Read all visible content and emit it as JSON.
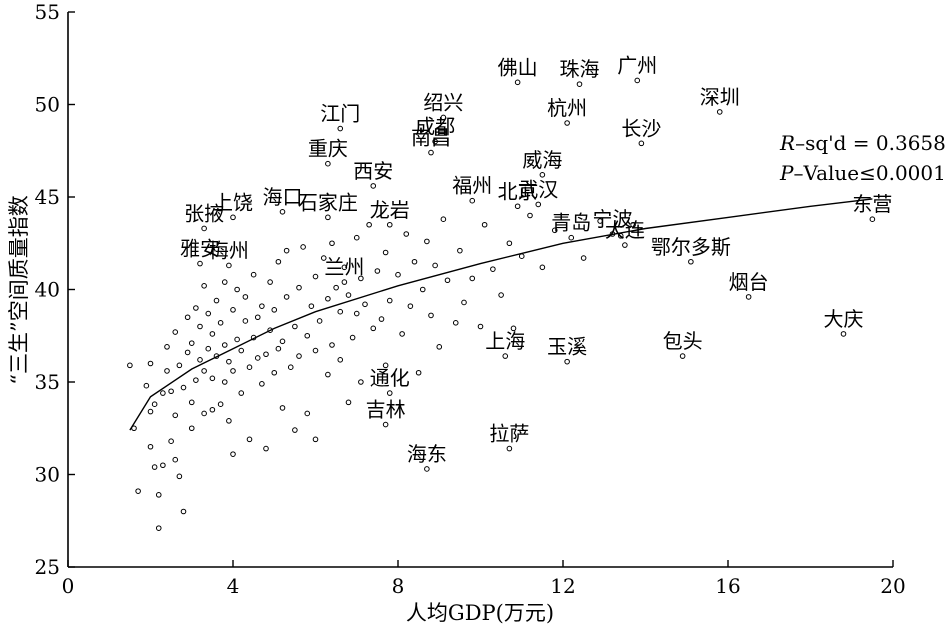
{
  "chart_data": {
    "type": "scatter",
    "title": "",
    "xlabel": "人均GDP(万元)",
    "ylabel": "“三生”空间质量指数",
    "xlim": [
      0,
      20
    ],
    "ylim": [
      25,
      55
    ],
    "xticks": [
      0,
      4,
      8,
      12,
      16,
      20
    ],
    "yticks": [
      25,
      30,
      35,
      40,
      45,
      50,
      55
    ],
    "grid": false,
    "legend": "none",
    "marker": "open-circle",
    "colors": {
      "axis": "#000000",
      "points": "#000000",
      "fit_line": "#000000"
    },
    "annotation": {
      "r_label_italic": "R",
      "r_label_rest": "–sq'd = 0.3658",
      "p_label_italic": "P",
      "p_label_rest": "–Value≤0.0001"
    },
    "fit_curve": {
      "type": "logarithmic",
      "x": [
        1.5,
        2,
        3,
        4,
        5,
        6,
        8,
        10,
        12,
        14,
        16,
        18,
        19.5
      ],
      "y": [
        32.4,
        34.2,
        35.7,
        36.8,
        37.9,
        38.8,
        40.2,
        41.4,
        42.5,
        43.3,
        43.9,
        44.5,
        44.9
      ]
    },
    "labeled_points": [
      {
        "name": "佛山",
        "x": 10.9,
        "y": 51.2
      },
      {
        "name": "珠海",
        "x": 12.4,
        "y": 51.1
      },
      {
        "name": "广州",
        "x": 13.8,
        "y": 51.3
      },
      {
        "name": "深圳",
        "x": 15.8,
        "y": 49.6
      },
      {
        "name": "绍兴",
        "x": 9.1,
        "y": 49.3
      },
      {
        "name": "杭州",
        "x": 12.1,
        "y": 49.0
      },
      {
        "name": "江门",
        "x": 6.6,
        "y": 48.7
      },
      {
        "name": "成都",
        "x": 8.9,
        "y": 48.0
      },
      {
        "name": "长沙",
        "x": 13.9,
        "y": 47.9
      },
      {
        "name": "南昌",
        "x": 8.8,
        "y": 47.4
      },
      {
        "name": "重庆",
        "x": 6.3,
        "y": 46.8
      },
      {
        "name": "威海",
        "x": 11.5,
        "y": 46.2
      },
      {
        "name": "西安",
        "x": 7.4,
        "y": 45.6
      },
      {
        "name": "福州",
        "x": 9.8,
        "y": 44.8
      },
      {
        "name": "北京",
        "x": 10.9,
        "y": 44.5
      },
      {
        "name": "武汉",
        "x": 11.4,
        "y": 44.6
      },
      {
        "name": "张掖",
        "x": 3.3,
        "y": 43.3
      },
      {
        "name": "上饶",
        "x": 4.0,
        "y": 43.9
      },
      {
        "name": "海口",
        "x": 5.2,
        "y": 44.2
      },
      {
        "name": "石家庄",
        "x": 6.3,
        "y": 43.9
      },
      {
        "name": "龙岩",
        "x": 7.8,
        "y": 43.5
      },
      {
        "name": "青岛",
        "x": 12.2,
        "y": 42.8
      },
      {
        "name": "宁波",
        "x": 13.2,
        "y": 43.0
      },
      {
        "name": "大连",
        "x": 13.5,
        "y": 42.4
      },
      {
        "name": "鄂尔多斯",
        "x": 15.1,
        "y": 41.5
      },
      {
        "name": "东营",
        "x": 19.5,
        "y": 43.8
      },
      {
        "name": "雅安",
        "x": 3.2,
        "y": 41.4
      },
      {
        "name": "梅州",
        "x": 3.9,
        "y": 41.3
      },
      {
        "name": "兰州",
        "x": 6.7,
        "y": 40.4
      },
      {
        "name": "烟台",
        "x": 16.5,
        "y": 39.6
      },
      {
        "name": "上海",
        "x": 10.6,
        "y": 36.4
      },
      {
        "name": "玉溪",
        "x": 12.1,
        "y": 36.1
      },
      {
        "name": "包头",
        "x": 14.9,
        "y": 36.4
      },
      {
        "name": "大庆",
        "x": 18.8,
        "y": 37.6
      },
      {
        "name": "通化",
        "x": 7.8,
        "y": 34.4
      },
      {
        "name": "吉林",
        "x": 7.7,
        "y": 32.7
      },
      {
        "name": "拉萨",
        "x": 10.7,
        "y": 31.4
      },
      {
        "name": "海东",
        "x": 8.7,
        "y": 30.3
      }
    ],
    "other_points": [
      [
        1.5,
        35.9
      ],
      [
        1.6,
        32.5
      ],
      [
        1.7,
        29.1
      ],
      [
        1.9,
        34.8
      ],
      [
        2.0,
        31.5
      ],
      [
        2.0,
        33.4
      ],
      [
        2.0,
        36.0
      ],
      [
        2.1,
        30.4
      ],
      [
        2.1,
        33.8
      ],
      [
        2.2,
        27.1
      ],
      [
        2.2,
        28.9
      ],
      [
        2.3,
        30.5
      ],
      [
        2.3,
        34.4
      ],
      [
        2.4,
        35.6
      ],
      [
        2.4,
        36.9
      ],
      [
        2.5,
        31.8
      ],
      [
        2.5,
        34.5
      ],
      [
        2.6,
        30.8
      ],
      [
        2.6,
        33.2
      ],
      [
        2.6,
        37.7
      ],
      [
        2.7,
        29.9
      ],
      [
        2.7,
        35.9
      ],
      [
        2.8,
        28.0
      ],
      [
        2.8,
        34.7
      ],
      [
        2.9,
        36.6
      ],
      [
        2.9,
        38.5
      ],
      [
        3.0,
        32.5
      ],
      [
        3.0,
        33.9
      ],
      [
        3.0,
        37.1
      ],
      [
        3.1,
        35.1
      ],
      [
        3.1,
        39.0
      ],
      [
        3.2,
        36.2
      ],
      [
        3.2,
        38.0
      ],
      [
        3.3,
        33.3
      ],
      [
        3.3,
        35.6
      ],
      [
        3.3,
        40.2
      ],
      [
        3.4,
        36.8
      ],
      [
        3.4,
        38.7
      ],
      [
        3.5,
        33.5
      ],
      [
        3.5,
        35.2
      ],
      [
        3.5,
        37.6
      ],
      [
        3.6,
        36.4
      ],
      [
        3.6,
        39.4
      ],
      [
        3.7,
        33.8
      ],
      [
        3.7,
        38.2
      ],
      [
        3.8,
        35.0
      ],
      [
        3.8,
        37.0
      ],
      [
        3.8,
        40.4
      ],
      [
        3.9,
        32.9
      ],
      [
        3.9,
        36.1
      ],
      [
        4.0,
        31.1
      ],
      [
        4.0,
        35.6
      ],
      [
        4.0,
        38.9
      ],
      [
        4.1,
        37.3
      ],
      [
        4.1,
        40.0
      ],
      [
        4.2,
        34.4
      ],
      [
        4.2,
        36.7
      ],
      [
        4.3,
        38.3
      ],
      [
        4.3,
        39.6
      ],
      [
        4.4,
        31.9
      ],
      [
        4.4,
        35.8
      ],
      [
        4.5,
        37.4
      ],
      [
        4.5,
        40.8
      ],
      [
        4.6,
        36.3
      ],
      [
        4.6,
        38.5
      ],
      [
        4.7,
        34.9
      ],
      [
        4.7,
        39.1
      ],
      [
        4.8,
        31.4
      ],
      [
        4.8,
        36.5
      ],
      [
        4.9,
        37.8
      ],
      [
        4.9,
        40.4
      ],
      [
        5.0,
        35.5
      ],
      [
        5.0,
        38.9
      ],
      [
        5.1,
        36.8
      ],
      [
        5.1,
        41.5
      ],
      [
        5.2,
        33.6
      ],
      [
        5.2,
        37.2
      ],
      [
        5.3,
        39.6
      ],
      [
        5.3,
        42.1
      ],
      [
        5.4,
        35.8
      ],
      [
        5.5,
        32.4
      ],
      [
        5.5,
        38.0
      ],
      [
        5.6,
        36.4
      ],
      [
        5.6,
        40.1
      ],
      [
        5.7,
        42.3
      ],
      [
        5.8,
        33.3
      ],
      [
        5.8,
        37.5
      ],
      [
        5.9,
        39.1
      ],
      [
        6.0,
        31.9
      ],
      [
        6.0,
        36.7
      ],
      [
        6.0,
        40.7
      ],
      [
        6.1,
        38.3
      ],
      [
        6.2,
        41.7
      ],
      [
        6.3,
        35.4
      ],
      [
        6.3,
        39.5
      ],
      [
        6.4,
        37.0
      ],
      [
        6.4,
        42.5
      ],
      [
        6.5,
        40.1
      ],
      [
        6.6,
        36.2
      ],
      [
        6.6,
        38.8
      ],
      [
        6.7,
        41.2
      ],
      [
        6.8,
        33.9
      ],
      [
        6.8,
        39.7
      ],
      [
        6.9,
        37.4
      ],
      [
        7.0,
        42.8
      ],
      [
        7.0,
        38.7
      ],
      [
        7.1,
        35.0
      ],
      [
        7.1,
        40.6
      ],
      [
        7.2,
        39.2
      ],
      [
        7.3,
        43.5
      ],
      [
        7.4,
        37.9
      ],
      [
        7.5,
        41.0
      ],
      [
        7.6,
        38.4
      ],
      [
        7.7,
        35.9
      ],
      [
        7.7,
        42.0
      ],
      [
        7.8,
        39.4
      ],
      [
        8.0,
        40.8
      ],
      [
        8.1,
        37.6
      ],
      [
        8.2,
        43.0
      ],
      [
        8.3,
        39.1
      ],
      [
        8.4,
        41.5
      ],
      [
        8.5,
        35.5
      ],
      [
        8.6,
        40.0
      ],
      [
        8.7,
        42.6
      ],
      [
        8.8,
        38.6
      ],
      [
        8.9,
        41.3
      ],
      [
        9.0,
        36.9
      ],
      [
        9.1,
        43.8
      ],
      [
        9.2,
        40.5
      ],
      [
        9.4,
        38.2
      ],
      [
        9.5,
        42.1
      ],
      [
        9.6,
        39.3
      ],
      [
        9.8,
        40.6
      ],
      [
        10.0,
        38.0
      ],
      [
        10.1,
        43.5
      ],
      [
        10.3,
        41.1
      ],
      [
        10.5,
        39.7
      ],
      [
        10.7,
        42.5
      ],
      [
        10.8,
        37.9
      ],
      [
        11.0,
        41.8
      ],
      [
        11.2,
        44.0
      ],
      [
        11.5,
        41.2
      ],
      [
        11.8,
        43.2
      ],
      [
        12.5,
        41.7
      ],
      [
        12.9,
        43.7
      ],
      [
        13.4,
        42.9
      ],
      [
        13.7,
        43.5
      ]
    ]
  }
}
